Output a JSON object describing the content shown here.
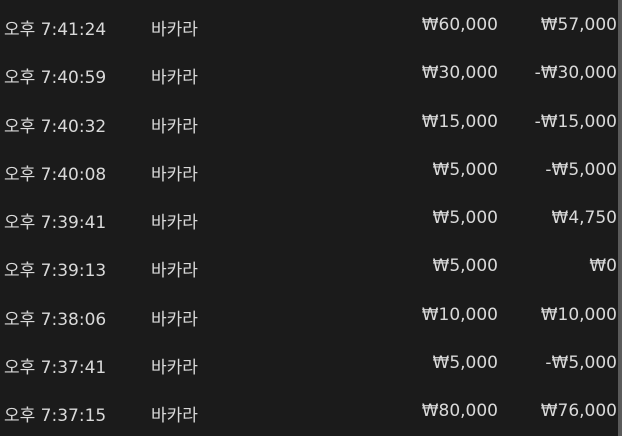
{
  "rows": [
    {
      "time": "오후 7:41:24",
      "game": "바카라",
      "bet": "₩60,000",
      "result": "₩57,000"
    },
    {
      "time": "오후 7:40:59",
      "game": "바카라",
      "bet": "₩30,000",
      "result": "-₩30,000"
    },
    {
      "time": "오후 7:40:32",
      "game": "바카라",
      "bet": "₩15,000",
      "result": "-₩15,000"
    },
    {
      "time": "오후 7:40:08",
      "game": "바카라",
      "bet": "₩5,000",
      "result": "-₩5,000"
    },
    {
      "time": "오후 7:39:41",
      "game": "바카라",
      "bet": "₩5,000",
      "result": "₩4,750"
    },
    {
      "time": "오후 7:39:13",
      "game": "바카라",
      "bet": "₩5,000",
      "result": "₩0"
    },
    {
      "time": "오후 7:38:06",
      "game": "바카라",
      "bet": "₩10,000",
      "result": "₩10,000"
    },
    {
      "time": "오후 7:37:41",
      "game": "바카라",
      "bet": "₩5,000",
      "result": "-₩5,000"
    },
    {
      "time": "오후 7:37:15",
      "game": "바카라",
      "bet": "₩80,000",
      "result": "₩76,000"
    }
  ]
}
